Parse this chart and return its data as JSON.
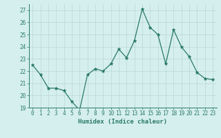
{
  "x": [
    0,
    1,
    2,
    3,
    4,
    5,
    6,
    7,
    8,
    9,
    10,
    11,
    12,
    13,
    14,
    15,
    16,
    17,
    18,
    19,
    20,
    21,
    22,
    23
  ],
  "y": [
    22.5,
    21.7,
    20.6,
    20.6,
    20.4,
    19.5,
    18.8,
    21.7,
    22.2,
    22.0,
    22.6,
    23.8,
    23.1,
    24.5,
    27.1,
    25.6,
    25.0,
    22.6,
    25.4,
    24.0,
    23.2,
    21.9,
    21.4,
    21.3
  ],
  "line_color": "#2a7a65",
  "marker": "*",
  "marker_size": 3.5,
  "bg_color": "#d5efee",
  "grid_color": "#b8d8d5",
  "axis_color": "#2a7a65",
  "xlabel": "Humidex (Indice chaleur)",
  "ylim": [
    19,
    27.5
  ],
  "xlim": [
    -0.5,
    23.5
  ],
  "yticks": [
    19,
    20,
    21,
    22,
    23,
    24,
    25,
    26,
    27
  ],
  "xticks": [
    0,
    1,
    2,
    3,
    4,
    5,
    6,
    7,
    8,
    9,
    10,
    11,
    12,
    13,
    14,
    15,
    16,
    17,
    18,
    19,
    20,
    21,
    22,
    23
  ],
  "font_size_axis": 6.5,
  "font_size_ticks": 5.5
}
